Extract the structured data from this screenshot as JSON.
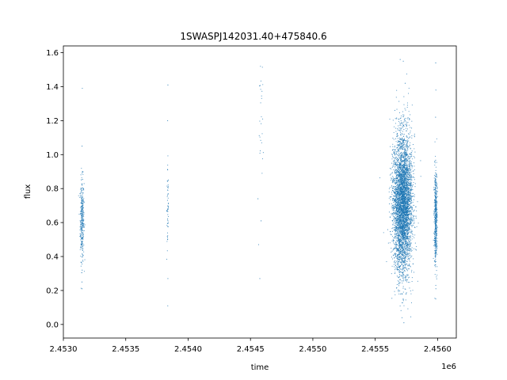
{
  "chart_data": {
    "type": "scatter",
    "title": "1SWASPJ142031.40+475840.6",
    "xlabel": "time",
    "ylabel": "flux",
    "x_offset_label": "1e6",
    "xlim": [
      2453000,
      2456150
    ],
    "ylim": [
      -0.08,
      1.64
    ],
    "x_ticks": [
      2453000,
      2453500,
      2454000,
      2454500,
      2455000,
      2455500,
      2456000
    ],
    "x_tick_labels": [
      "2.4530",
      "2.4535",
      "2.4540",
      "2.4545",
      "2.4550",
      "2.4555",
      "2.4560"
    ],
    "y_ticks": [
      0.0,
      0.2,
      0.4,
      0.6,
      0.8,
      1.0,
      1.2,
      1.4,
      1.6
    ],
    "y_tick_labels": [
      "0.0",
      "0.2",
      "0.4",
      "0.6",
      "0.8",
      "1.0",
      "1.2",
      "1.4",
      "1.6"
    ],
    "grid": false,
    "legend": "none",
    "marker_color": "#1f77b4",
    "clusters": [
      {
        "x_center": 2453150,
        "x_spread": 8,
        "y_center": 0.62,
        "y_spread": 0.12,
        "y_min": 0.19,
        "y_max": 1.12,
        "points": 320,
        "outliers": [
          [
            2453152,
            1.39
          ],
          [
            2453150,
            1.05
          ],
          [
            2453151,
            0.32
          ],
          [
            2453149,
            0.25
          ],
          [
            2453150,
            0.21
          ]
        ]
      },
      {
        "x_center": 2453837,
        "x_spread": 4,
        "y_center": 0.68,
        "y_spread": 0.16,
        "y_min": 0.24,
        "y_max": 1.0,
        "points": 55,
        "outliers": [
          [
            2453838,
            1.41
          ],
          [
            2453836,
            1.2
          ],
          [
            2453837,
            0.11
          ],
          [
            2453838,
            0.27
          ],
          [
            2453836,
            0.91
          ]
        ]
      },
      {
        "x_center": 2454580,
        "x_spread": 12,
        "y_center": 1.2,
        "y_spread": 0.2,
        "y_min": 0.85,
        "y_max": 1.52,
        "points": 25,
        "outliers": [
          [
            2454565,
            0.47
          ],
          [
            2454575,
            0.27
          ],
          [
            2454585,
            0.61
          ],
          [
            2454560,
            0.74
          ]
        ]
      },
      {
        "x_center": 2455720,
        "x_spread": 38,
        "y_center": 0.71,
        "y_spread": 0.2,
        "y_min": 0.0,
        "y_max": 1.57,
        "points": 4500,
        "outliers": [
          [
            2455700,
            1.56
          ],
          [
            2455725,
            1.55
          ],
          [
            2455715,
            0.04
          ],
          [
            2455730,
            0.01
          ],
          [
            2455740,
            1.42
          ]
        ]
      },
      {
        "x_center": 2455985,
        "x_spread": 6,
        "y_center": 0.63,
        "y_spread": 0.14,
        "y_min": 0.15,
        "y_max": 1.12,
        "points": 500,
        "outliers": [
          [
            2455985,
            1.54
          ],
          [
            2455986,
            1.38
          ],
          [
            2455984,
            1.22
          ],
          [
            2455985,
            0.15
          ],
          [
            2455986,
            0.21
          ]
        ]
      }
    ]
  }
}
